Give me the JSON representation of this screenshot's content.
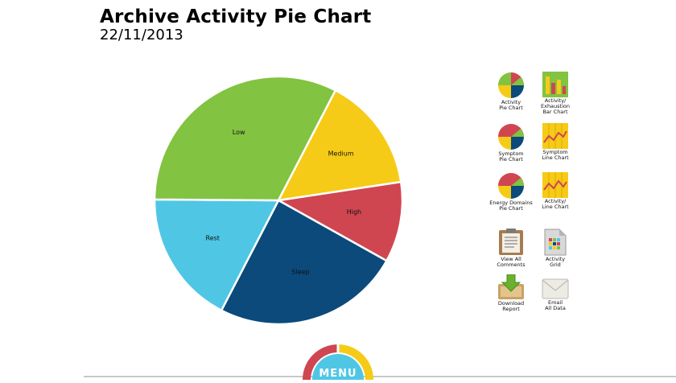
{
  "header": {
    "title": "Archive Activity Pie Chart",
    "date": "22/11/2013"
  },
  "chart_data": {
    "type": "pie",
    "slices": [
      {
        "label": "High",
        "percent": 10.5,
        "color": "#cf4651"
      },
      {
        "label": "Sleep",
        "percent": 24.5,
        "color": "#0b4a7b"
      },
      {
        "label": "Rest",
        "percent": 17.5,
        "color": "#4fc7e4"
      },
      {
        "label": "Low",
        "percent": 32.5,
        "color": "#82c341"
      },
      {
        "label": "Medium",
        "percent": 15.0,
        "color": "#f6cb17"
      }
    ]
  },
  "sidebar": {
    "activity_pie": "Activity\nPie Chart",
    "activity_bar": "Activity/\nExhaustion\nBar Chart",
    "symptom_pie": "Symptom\nPie Chart",
    "symptom_line": "Symptom\nLine Chart",
    "energy_pie": "Energy Domains\nPie Chart",
    "activity_line": "Activity/\nLine Chart",
    "view_comments": "View All\nComments",
    "activity_grid": "Activity\nGrid",
    "download_report": "Download\nReport",
    "email_data": "Email\nAll Data"
  },
  "menu": {
    "label": "MENU"
  },
  "colors": {
    "red": "#cf4651",
    "yellow": "#f6cb17",
    "green": "#82c341",
    "navy": "#0b4a7b",
    "sky": "#4fc7e4"
  }
}
